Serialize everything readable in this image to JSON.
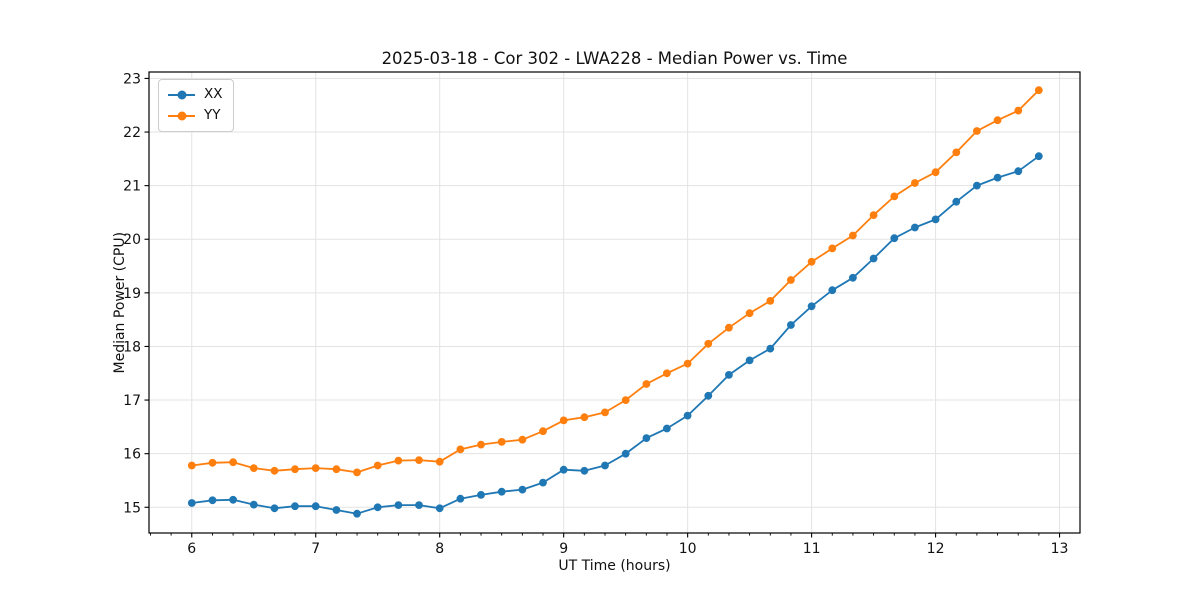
{
  "figure": {
    "title": "2025-03-18 - Cor 302 - LWA228 - Median Power vs. Time",
    "xlabel": "UT Time (hours)",
    "ylabel": "Median Power (CPU)"
  },
  "chart_data": {
    "type": "line",
    "title": "2025-03-18 - Cor 302 - LWA228 - Median Power vs. Time",
    "xlabel": "UT Time (hours)",
    "ylabel": "Median Power (CPU)",
    "legend_position": "upper-left",
    "grid": true,
    "marker": "circle",
    "xlim": [
      5.655,
      13.165
    ],
    "ylim": [
      14.52,
      23.12
    ],
    "xticks": [
      6,
      7,
      8,
      9,
      10,
      11,
      12,
      13
    ],
    "yticks": [
      15,
      16,
      17,
      18,
      19,
      20,
      21,
      22,
      23
    ],
    "x_minor_step": 0.1666667,
    "x": [
      6.0,
      6.167,
      6.333,
      6.5,
      6.667,
      6.833,
      7.0,
      7.167,
      7.333,
      7.5,
      7.667,
      7.833,
      8.0,
      8.167,
      8.333,
      8.5,
      8.667,
      8.833,
      9.0,
      9.167,
      9.333,
      9.5,
      9.667,
      9.833,
      10.0,
      10.167,
      10.333,
      10.5,
      10.667,
      10.833,
      11.0,
      11.167,
      11.333,
      11.5,
      11.667,
      11.833,
      12.0,
      12.167,
      12.333,
      12.5,
      12.667,
      12.833
    ],
    "series": [
      {
        "name": "XX",
        "color": "#1f77b4",
        "values": [
          15.08,
          15.13,
          15.14,
          15.05,
          14.98,
          15.02,
          15.02,
          14.95,
          14.88,
          15.0,
          15.04,
          15.04,
          14.98,
          15.16,
          15.23,
          15.29,
          15.33,
          15.46,
          15.7,
          15.68,
          15.78,
          16.0,
          16.29,
          16.47,
          16.71,
          17.08,
          17.47,
          17.74,
          17.96,
          18.4,
          18.75,
          19.05,
          19.28,
          19.64,
          20.02,
          20.22,
          20.37,
          20.7,
          21.0,
          21.15,
          21.27,
          21.55
        ]
      },
      {
        "name": "YY",
        "color": "#ff7f0e",
        "values": [
          15.78,
          15.83,
          15.84,
          15.73,
          15.68,
          15.71,
          15.73,
          15.71,
          15.65,
          15.78,
          15.87,
          15.88,
          15.85,
          16.08,
          16.17,
          16.22,
          16.26,
          16.42,
          16.62,
          16.68,
          16.77,
          17.0,
          17.3,
          17.5,
          17.68,
          18.05,
          18.35,
          18.62,
          18.85,
          19.24,
          19.58,
          19.83,
          20.07,
          20.45,
          20.8,
          21.05,
          21.25,
          21.62,
          22.02,
          22.22,
          22.4,
          22.78
        ]
      }
    ]
  },
  "style": {
    "grid_color": "#e3e3e3",
    "spine_color": "#000000",
    "tick_color": "#000000",
    "background": "#ffffff"
  }
}
